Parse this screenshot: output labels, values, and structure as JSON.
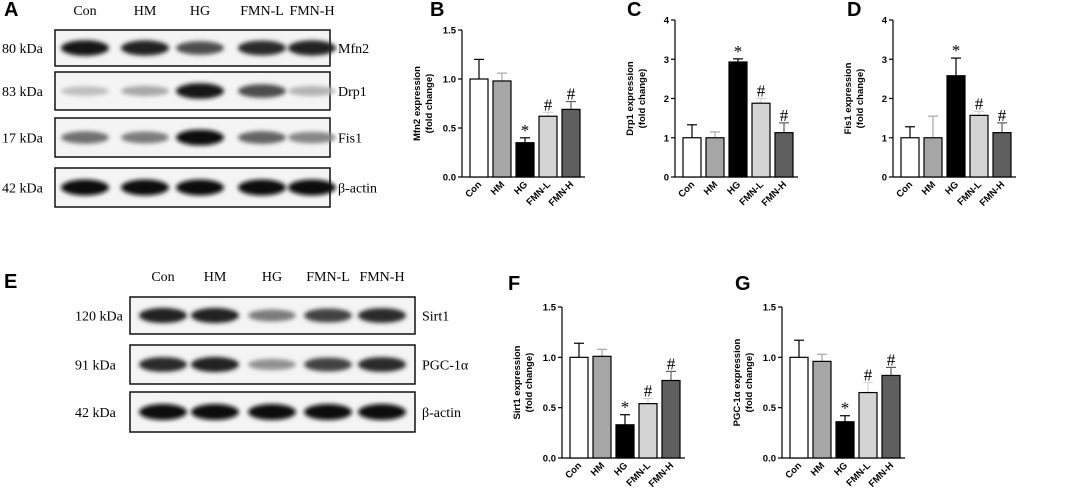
{
  "blots": [
    {
      "label": "A",
      "lanes": [
        "Con",
        "HM",
        "HG",
        "FMN-L",
        "FMN-H"
      ],
      "rows": [
        {
          "size": "80 kDa",
          "protein": "Mfn2"
        },
        {
          "size": "83 kDa",
          "protein": "Drp1"
        },
        {
          "size": "17 kDa",
          "protein": "Fis1"
        },
        {
          "size": "42 kDa",
          "protein": "β-actin"
        }
      ]
    },
    {
      "label": "E",
      "lanes": [
        "Con",
        "HM",
        "HG",
        "FMN-L",
        "FMN-H"
      ],
      "rows": [
        {
          "size": "120 kDa",
          "protein": "Sirt1"
        },
        {
          "size": "91 kDa",
          "protein": "PGC-1α"
        },
        {
          "size": "42 kDa",
          "protein": "β-actin"
        }
      ]
    }
  ],
  "chart_data": [
    {
      "type": "bar",
      "panel": "B",
      "ylabel": [
        "Mfn2 expression",
        "(fold change)"
      ],
      "categories": [
        "Con",
        "HM",
        "HG",
        "FMN-L",
        "FMN-H"
      ],
      "colors": [
        "#ffffff",
        "#a6a6a6",
        "#000000",
        "#d4d4d4",
        "#5f5f5f"
      ],
      "values": [
        1.0,
        0.98,
        0.35,
        0.62,
        0.69
      ],
      "errors": [
        0.2,
        0.08,
        0.05,
        0.04,
        0.08
      ],
      "annotations": [
        null,
        null,
        "*",
        "#",
        "#"
      ],
      "ylim": [
        0,
        1.5
      ],
      "yticks": [
        {
          "value": 0,
          "label": "0.0"
        },
        {
          "value": 0.5,
          "label": "0.5"
        },
        {
          "value": 1,
          "label": "1.0"
        },
        {
          "value": 1.5,
          "label": "1.5"
        }
      ]
    },
    {
      "type": "bar",
      "panel": "C",
      "ylabel": [
        "Drp1 expression",
        "(fold change)"
      ],
      "categories": [
        "Con",
        "HM",
        "HG",
        "FMN-L",
        "FMN-H"
      ],
      "colors": [
        "#ffffff",
        "#a6a6a6",
        "#000000",
        "#d4d4d4",
        "#5f5f5f"
      ],
      "values": [
        1.0,
        1.0,
        2.93,
        1.88,
        1.13
      ],
      "errors": [
        0.33,
        0.15,
        0.08,
        0.12,
        0.25
      ],
      "annotations": [
        null,
        null,
        "*",
        "#",
        "#"
      ],
      "ylim": [
        0,
        4
      ],
      "yticks": [
        0,
        1,
        2,
        3,
        4
      ]
    },
    {
      "type": "bar",
      "panel": "D",
      "ylabel": [
        "Fis1 expression",
        "(fold change)"
      ],
      "categories": [
        "Con",
        "HM",
        "HG",
        "FMN-L",
        "FMN-H"
      ],
      "colors": [
        "#ffffff",
        "#a6a6a6",
        "#000000",
        "#d4d4d4",
        "#5f5f5f"
      ],
      "values": [
        1.0,
        1.0,
        2.58,
        1.57,
        1.13
      ],
      "errors": [
        0.28,
        0.55,
        0.45,
        0.1,
        0.25
      ],
      "annotations": [
        null,
        null,
        "*",
        "#",
        "#"
      ],
      "ylim": [
        0,
        4
      ],
      "yticks": [
        0,
        1,
        2,
        3,
        4
      ]
    },
    {
      "type": "bar",
      "panel": "F",
      "ylabel": [
        "Sirt1 expression",
        "(fold change)"
      ],
      "categories": [
        "Con",
        "HM",
        "HG",
        "FMN-L",
        "FMN-H"
      ],
      "colors": [
        "#ffffff",
        "#a6a6a6",
        "#000000",
        "#d4d4d4",
        "#5f5f5f"
      ],
      "values": [
        1.0,
        1.01,
        0.33,
        0.54,
        0.77
      ],
      "errors": [
        0.14,
        0.07,
        0.1,
        0.05,
        0.09
      ],
      "annotations": [
        null,
        null,
        "*",
        "#",
        "#"
      ],
      "ylim": [
        0,
        1.5
      ],
      "yticks": [
        {
          "value": 0,
          "label": "0.0"
        },
        {
          "value": 0.5,
          "label": "0.5"
        },
        {
          "value": 1,
          "label": "1.0"
        },
        {
          "value": 1.5,
          "label": "1.5"
        }
      ]
    },
    {
      "type": "bar",
      "panel": "G",
      "ylabel": [
        "PGC-1α expression",
        "(fold change)"
      ],
      "categories": [
        "Con",
        "HM",
        "HG",
        "FMN-L",
        "FMN-H"
      ],
      "colors": [
        "#ffffff",
        "#a6a6a6",
        "#000000",
        "#d4d4d4",
        "#5f5f5f"
      ],
      "values": [
        1.0,
        0.96,
        0.36,
        0.65,
        0.82
      ],
      "errors": [
        0.17,
        0.07,
        0.06,
        0.1,
        0.08
      ],
      "annotations": [
        null,
        null,
        "*",
        "#",
        "#"
      ],
      "ylim": [
        0,
        1.5
      ],
      "yticks": [
        {
          "value": 0,
          "label": "0.0"
        },
        {
          "value": 0.5,
          "label": "0.5"
        },
        {
          "value": 1,
          "label": "1.0"
        },
        {
          "value": 1.5,
          "label": "1.5"
        }
      ]
    }
  ]
}
